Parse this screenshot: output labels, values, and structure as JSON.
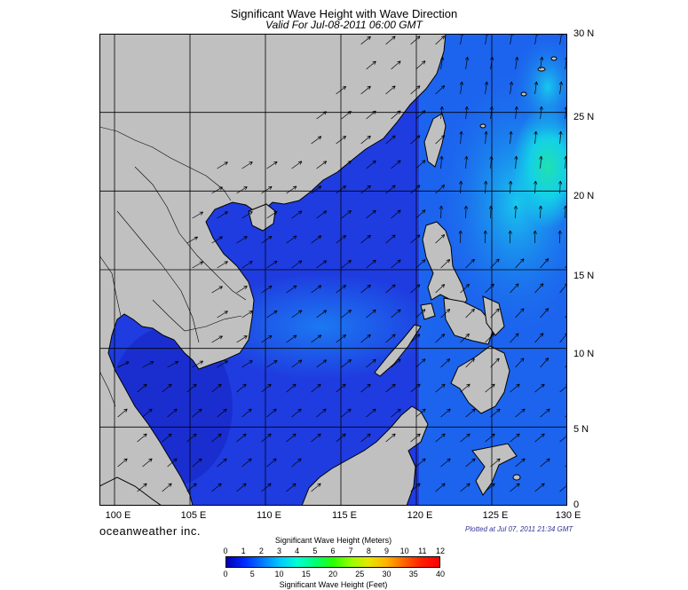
{
  "header": {
    "title": "Significant Wave Height with Wave Direction",
    "subtitle": "Valid For Jul-08-2011 06:00 GMT"
  },
  "map": {
    "lat_labels": [
      "30 N",
      "25 N",
      "20 N",
      "15 N",
      "10 N",
      "5 N",
      "0"
    ],
    "lon_labels": [
      "100 E",
      "105 E",
      "110 E",
      "115 E",
      "120 E",
      "125 E",
      "130 E"
    ],
    "lon_range": [
      99,
      130
    ],
    "lat_range": [
      0,
      30
    ],
    "grid": true,
    "colors": {
      "land": "#c0c0c0",
      "sea_low": "#1f2fd6",
      "sea_mid": "#1c6df0",
      "sea_high": "#10c8f0",
      "sea_peak": "#28e0a0",
      "coast": "#000000",
      "arrows": "#000000"
    },
    "wave_direction": "northeast (southwest monsoon)"
  },
  "footer": {
    "brand": "oceanweather inc.",
    "plotted": "Plotted at Jul 07, 2011 21:34 GMT"
  },
  "colorbar": {
    "title_top": "Significant Wave Height (Meters)",
    "title_bottom": "Significant Wave Height (Feet)",
    "meters_ticks": [
      "0",
      "1",
      "2",
      "3",
      "4",
      "5",
      "6",
      "7",
      "8",
      "9",
      "10",
      "11",
      "12"
    ],
    "feet_ticks": [
      "0",
      "5",
      "10",
      "15",
      "20",
      "25",
      "30",
      "35",
      "40"
    ],
    "meters_range": [
      0,
      12
    ],
    "feet_range": [
      0,
      40
    ],
    "stops": [
      "#0000b4",
      "#0028ff",
      "#0078ff",
      "#00c8ff",
      "#00ffd2",
      "#00ff78",
      "#28ff00",
      "#96ff00",
      "#e6e600",
      "#ffb400",
      "#ff6400",
      "#ff1e00",
      "#ff0000"
    ]
  }
}
